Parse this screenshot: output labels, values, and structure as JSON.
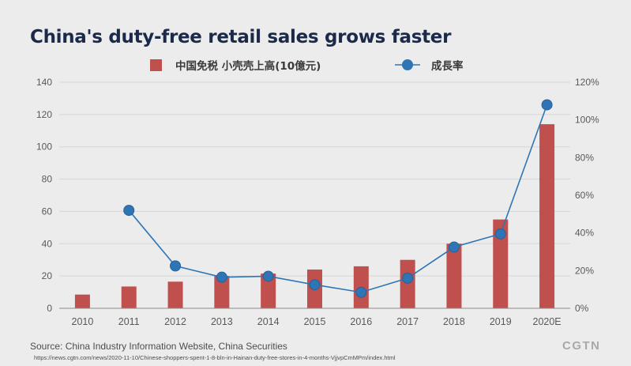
{
  "page": {
    "title": "China's duty-free retail sales grows faster",
    "source": "Source: China Industry Information Website, China Securities",
    "url": "https://news.cgtn.com/news/2020-11-10/Chinese-shoppers-spent-1-8-bln-in-Hainan-duty-free-stores-in-4-months-VjjvpCmMPm/index.html",
    "logo": "CGTN"
  },
  "colors": {
    "bar": "#c0504d",
    "line": "#2e75b6",
    "axis_text": "#595959",
    "grid": "#d6d6d6"
  },
  "chart_data": {
    "type": "bar",
    "title": "China's duty-free retail sales grows faster",
    "categories": [
      "2010",
      "2011",
      "2012",
      "2013",
      "2014",
      "2015",
      "2016",
      "2017",
      "2018",
      "2019",
      "2020E"
    ],
    "series": [
      {
        "name": "中国免税 小壳壳上高(10億元)",
        "type": "bar",
        "axis": "left",
        "values": [
          8.5,
          13.5,
          16.5,
          20,
          21.5,
          24,
          26,
          30,
          40,
          55,
          114
        ]
      },
      {
        "name": "成長率",
        "type": "line",
        "axis": "right",
        "values": [
          null,
          52,
          22.5,
          16.5,
          17,
          12.5,
          8.5,
          16,
          32.5,
          39.5,
          108
        ]
      }
    ],
    "y_left": {
      "min": 0,
      "max": 140,
      "ticks": [
        "0",
        "20",
        "40",
        "60",
        "80",
        "100",
        "120",
        "140"
      ]
    },
    "y_right": {
      "min": 0,
      "max": 120,
      "ticks": [
        "0%",
        "20%",
        "40%",
        "60%",
        "80%",
        "100%",
        "120%"
      ]
    },
    "grid": true,
    "legend_position": "top"
  }
}
